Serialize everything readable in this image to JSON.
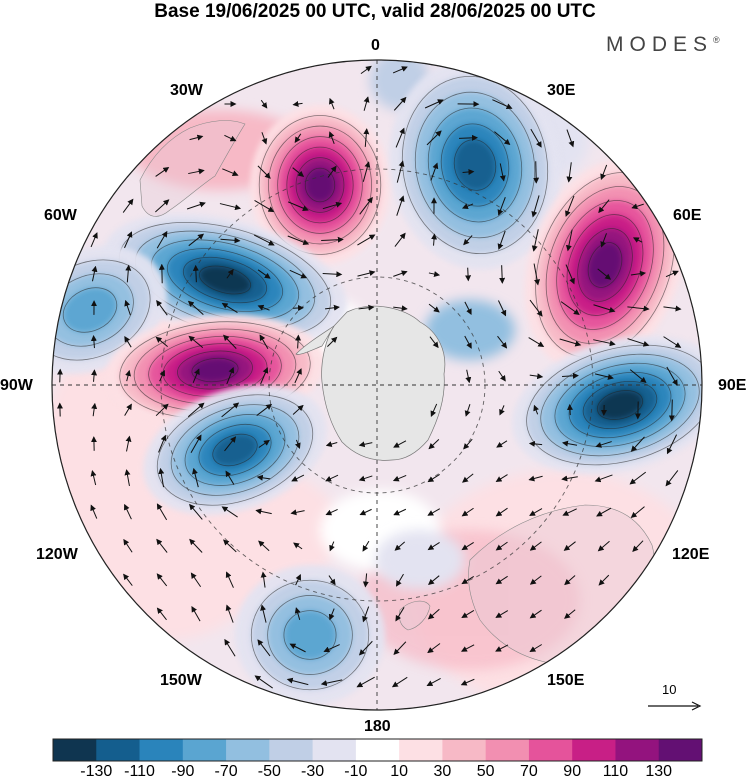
{
  "header": {
    "title": "Base 19/06/2025 00 UTC, valid 28/06/2025 00 UTC",
    "brand": "MODES"
  },
  "map": {
    "projection": "south-polar-stereographic",
    "longitude_labels": {
      "top": "0",
      "top_right_30": "30E",
      "right_60": "60E",
      "right_90": "90E",
      "right_120": "120E",
      "bottom_right_150": "150E",
      "bottom": "180",
      "bottom_left_150": "150W",
      "left_120": "120W",
      "left_90": "90W",
      "left_60": "60W",
      "top_left_30": "30W"
    },
    "reference_vector_label": "10",
    "anomaly_centers": [
      {
        "sign": "positive",
        "level": 130,
        "location": "near 20W"
      },
      {
        "sign": "negative",
        "level": -110,
        "location": "near 20E"
      },
      {
        "sign": "positive",
        "level": 130,
        "location": "near 60E"
      },
      {
        "sign": "negative",
        "level": -130,
        "location": "near 90E"
      },
      {
        "sign": "negative",
        "level": -130,
        "location": "near 60W"
      },
      {
        "sign": "positive",
        "level": 130,
        "location": "near 90W"
      },
      {
        "sign": "negative",
        "level": -90,
        "location": "near 110W"
      },
      {
        "sign": "negative",
        "level": -50,
        "location": "near 160W"
      }
    ]
  },
  "colorbar": {
    "colors": [
      "#0f3550",
      "#145e8e",
      "#2a84bb",
      "#5aa5d1",
      "#92bfe0",
      "#c0cfe6",
      "#e3e3f1",
      "#ffffff",
      "#fde0e4",
      "#f7b9c6",
      "#f28fb1",
      "#e5539b",
      "#c81f86",
      "#93137e",
      "#631073"
    ],
    "tick_labels": [
      "-130",
      "-110",
      "-90",
      "-70",
      "-50",
      "-30",
      "-10",
      "10",
      "30",
      "50",
      "70",
      "90",
      "110",
      "130"
    ]
  }
}
